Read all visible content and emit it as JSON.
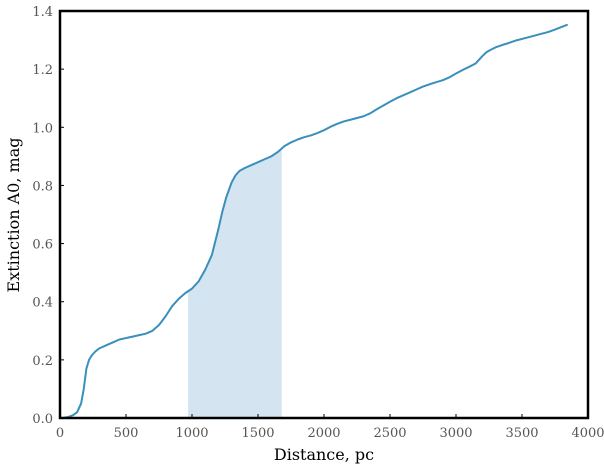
{
  "chart_data": {
    "type": "line",
    "title": "",
    "xlabel": "Distance, pc",
    "ylabel": "Extinction A0, mag",
    "xlim": [
      0,
      4000
    ],
    "ylim": [
      0.0,
      1.4
    ],
    "grid": false,
    "legend": "none",
    "xticks": [
      0,
      500,
      1000,
      1500,
      2000,
      2500,
      3000,
      3500,
      4000
    ],
    "xtick_labels": [
      "0",
      "500",
      "1000",
      "1500",
      "2000",
      "2500",
      "3000",
      "3500",
      "4000"
    ],
    "yticks": [
      0.0,
      0.2,
      0.4,
      0.6,
      0.8,
      1.0,
      1.2,
      1.4
    ],
    "ytick_labels": [
      "0.0",
      "0.2",
      "0.4",
      "0.6",
      "0.8",
      "1.0",
      "1.2",
      "1.4"
    ],
    "line_color": "#3a8fbc",
    "shaded_region": {
      "x_range": [
        970,
        1680
      ],
      "color": "#d4e5f1"
    },
    "series": [
      {
        "x": [
          20,
          60,
          100,
          130,
          160,
          180,
          200,
          220,
          240,
          270,
          300,
          350,
          400,
          450,
          500,
          550,
          600,
          650,
          700,
          750,
          800,
          850,
          900,
          950,
          1000,
          1050,
          1100,
          1150,
          1200,
          1230,
          1260,
          1300,
          1330,
          1360,
          1400,
          1450,
          1500,
          1550,
          1600,
          1650,
          1700,
          1750,
          1800,
          1850,
          1900,
          1950,
          2000,
          2050,
          2100,
          2150,
          2200,
          2250,
          2300,
          2350,
          2400,
          2450,
          2500,
          2550,
          2600,
          2650,
          2700,
          2750,
          2800,
          2850,
          2900,
          2950,
          3000,
          3050,
          3100,
          3150,
          3200,
          3230,
          3260,
          3300,
          3350,
          3400,
          3450,
          3500,
          3550,
          3600,
          3650,
          3700,
          3750,
          3800,
          3840
        ],
        "y": [
          0.0,
          0.003,
          0.01,
          0.02,
          0.05,
          0.1,
          0.17,
          0.2,
          0.215,
          0.23,
          0.24,
          0.25,
          0.26,
          0.27,
          0.275,
          0.28,
          0.285,
          0.29,
          0.3,
          0.32,
          0.35,
          0.385,
          0.41,
          0.43,
          0.445,
          0.47,
          0.51,
          0.56,
          0.65,
          0.71,
          0.76,
          0.81,
          0.835,
          0.85,
          0.86,
          0.87,
          0.88,
          0.89,
          0.9,
          0.915,
          0.935,
          0.948,
          0.958,
          0.966,
          0.972,
          0.98,
          0.99,
          1.002,
          1.012,
          1.02,
          1.026,
          1.032,
          1.038,
          1.048,
          1.062,
          1.075,
          1.088,
          1.1,
          1.11,
          1.12,
          1.13,
          1.14,
          1.148,
          1.155,
          1.162,
          1.172,
          1.185,
          1.197,
          1.208,
          1.22,
          1.245,
          1.258,
          1.266,
          1.275,
          1.283,
          1.29,
          1.298,
          1.304,
          1.31,
          1.316,
          1.322,
          1.328,
          1.336,
          1.345,
          1.352
        ]
      }
    ]
  }
}
